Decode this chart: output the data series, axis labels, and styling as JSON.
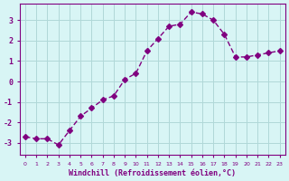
{
  "x": [
    0,
    1,
    2,
    3,
    4,
    5,
    6,
    7,
    8,
    9,
    10,
    11,
    12,
    13,
    14,
    15,
    16,
    17,
    18,
    19,
    20,
    21,
    22,
    23
  ],
  "y": [
    -2.7,
    -2.8,
    -2.8,
    -3.1,
    -2.4,
    -1.7,
    -1.3,
    -0.9,
    -0.7,
    0.1,
    0.4,
    1.5,
    2.1,
    2.7,
    2.8,
    3.4,
    3.3,
    3.0,
    2.3,
    1.2,
    1.2,
    1.3,
    1.4,
    1.5
  ],
  "line_color": "#800080",
  "marker": "D",
  "marker_size": 3,
  "bg_color": "#d8f5f5",
  "grid_color": "#b0d8d8",
  "tick_label_color": "#800080",
  "xlabel": "Windchill (Refroidissement éolien,°C)",
  "xlabel_color": "#800080",
  "ylabel_ticks": [
    -3,
    -2,
    -1,
    0,
    1,
    2,
    3
  ],
  "ylim": [
    -3.6,
    3.8
  ],
  "xlim": [
    -0.5,
    23.5
  ],
  "title": "",
  "figsize": [
    3.2,
    2.0
  ],
  "dpi": 100
}
